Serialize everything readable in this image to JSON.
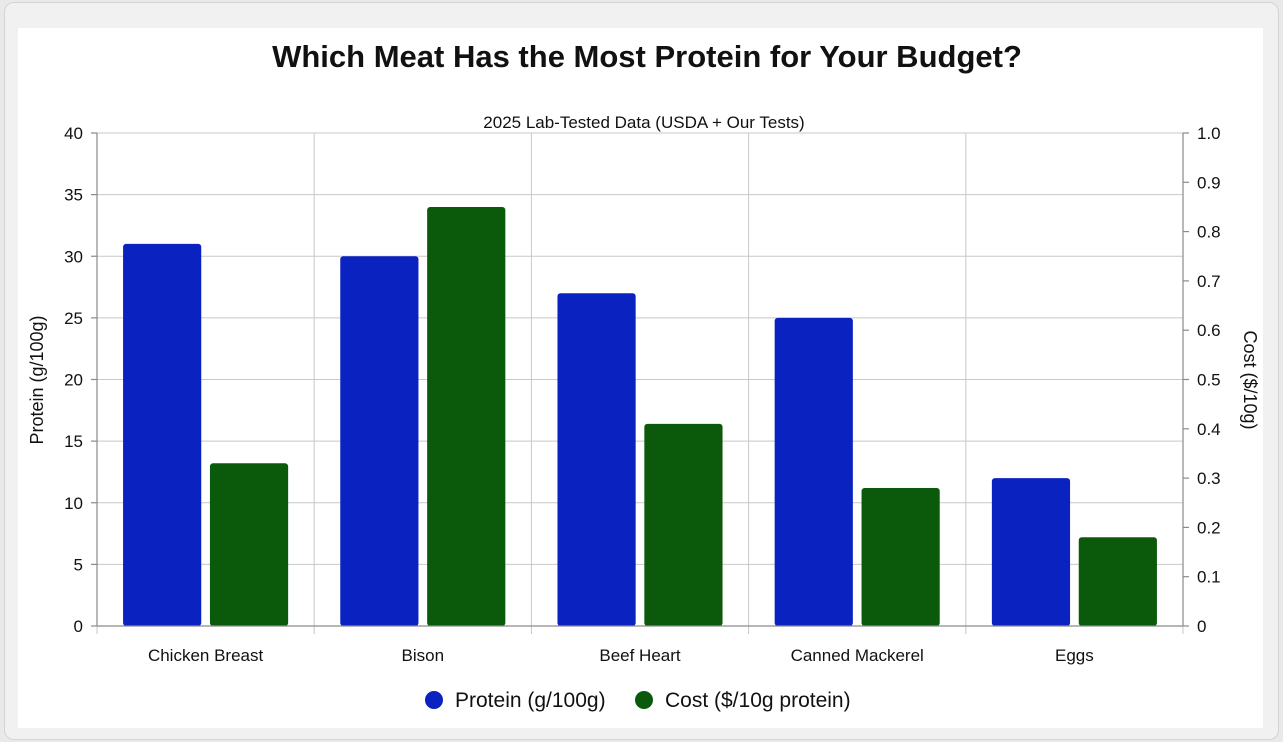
{
  "chart_data": {
    "type": "bar",
    "title": "Which Meat Has the Most Protein for Your Budget?",
    "subtitle": "2025 Lab-Tested Data (USDA + Our Tests)",
    "categories": [
      "Chicken Breast",
      "Bison",
      "Beef Heart",
      "Canned Mackerel",
      "Eggs"
    ],
    "series": [
      {
        "name": "Protein (g/100g)",
        "axis": "left",
        "color": "#0a22c0",
        "values": [
          31,
          30,
          27,
          25,
          12
        ]
      },
      {
        "name": "Cost ($/10g protein)",
        "axis": "right",
        "color": "#0b5a0b",
        "values": [
          0.33,
          0.85,
          0.41,
          0.28,
          0.18
        ]
      }
    ],
    "ylabel": "Protein (g/100g)",
    "ylabel_right": "Cost ($/10g)",
    "ylim": [
      0,
      40
    ],
    "ylim_right": [
      0,
      1.0
    ],
    "yticks": [
      "0",
      "5",
      "10",
      "15",
      "20",
      "25",
      "30",
      "35",
      "40"
    ],
    "yticks_right": [
      "0",
      "0.1",
      "0.2",
      "0.3",
      "0.4",
      "0.5",
      "0.6",
      "0.7",
      "0.8",
      "0.9",
      "1.0"
    ],
    "grid": true,
    "legend_position": "bottom"
  }
}
